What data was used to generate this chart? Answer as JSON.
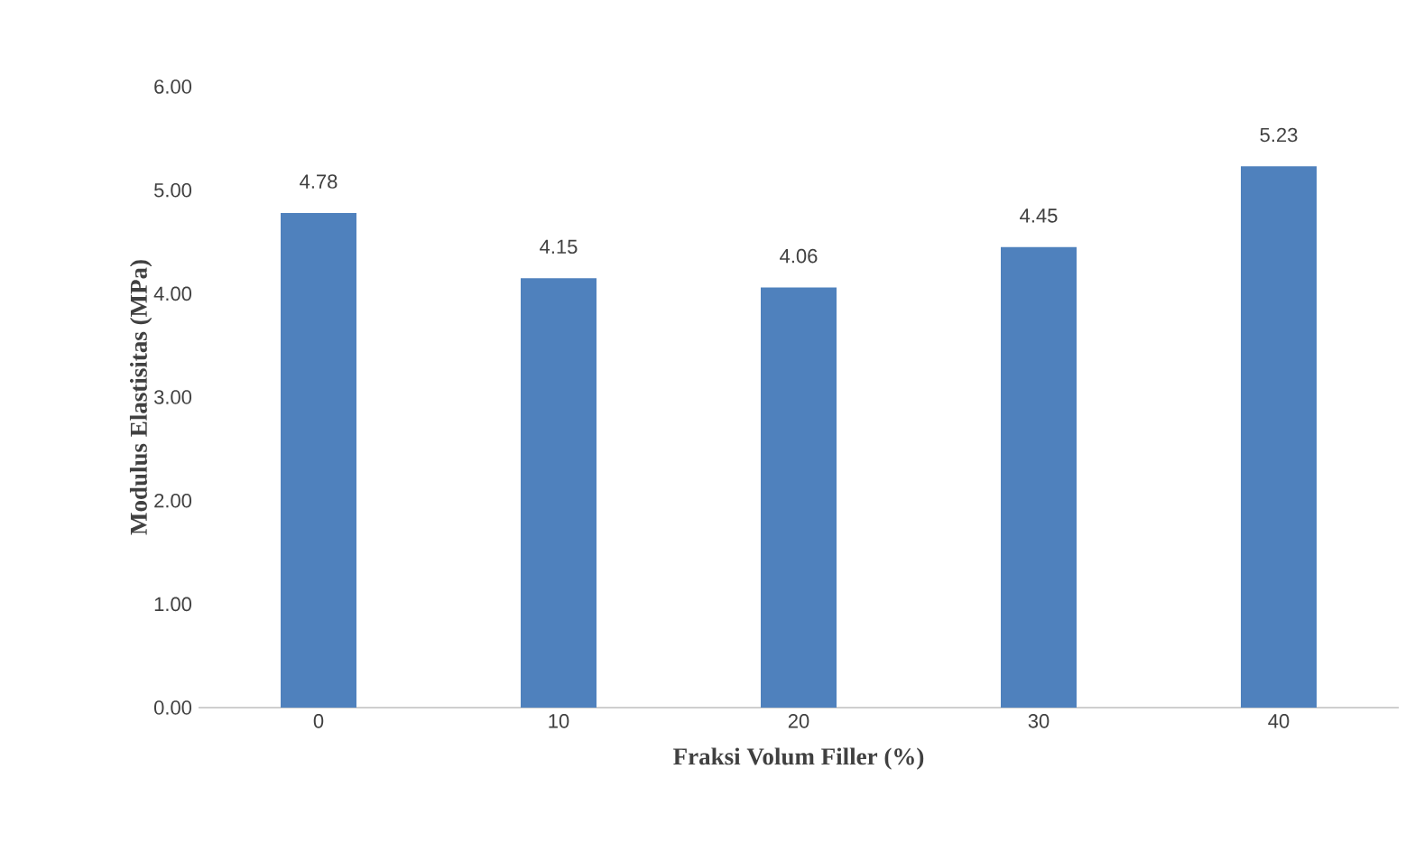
{
  "chart_data": {
    "type": "bar",
    "xlabel": "Fraksi Volum Filler (%)",
    "ylabel": "Modulus Elastisitas (MPa)",
    "categories": [
      "0",
      "10",
      "20",
      "30",
      "40"
    ],
    "values": [
      4.78,
      4.15,
      4.06,
      4.45,
      5.23
    ],
    "color": "#4f81bd",
    "ylim": [
      0,
      6
    ],
    "yticks": [
      {
        "value": 0,
        "label": "0.00"
      },
      {
        "value": 1,
        "label": "1.00"
      },
      {
        "value": 2,
        "label": "2.00"
      },
      {
        "value": 3,
        "label": "3.00"
      },
      {
        "value": 4,
        "label": "4.00"
      },
      {
        "value": 5,
        "label": "5.00"
      },
      {
        "value": 6,
        "label": "6.00"
      }
    ],
    "data_labels": true
  }
}
